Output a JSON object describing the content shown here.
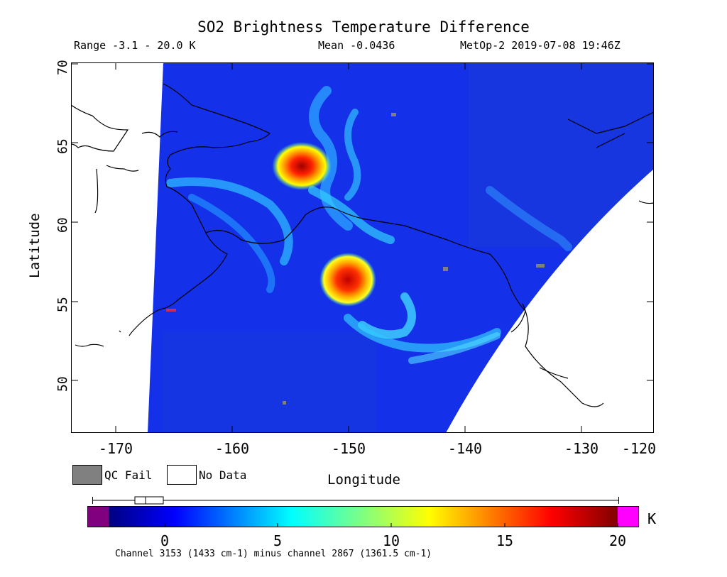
{
  "title": "SO2 Brightness Temperature Difference",
  "header": {
    "range": "Range -3.1 - 20.0 K",
    "mean": "Mean -0.0436",
    "satellite_time": "MetOp-2 2019-07-08 19:46Z"
  },
  "axes": {
    "x_label": "Longitude",
    "y_label": "Latitude",
    "x_ticks": [
      "-170",
      "-160",
      "-150",
      "-140",
      "-130",
      "-120"
    ],
    "y_ticks": [
      "50",
      "55",
      "60",
      "65",
      "70"
    ],
    "lon_range": [
      -175,
      -118
    ],
    "lat_range": [
      47,
      70
    ]
  },
  "legend": {
    "qc_fail": "QC Fail",
    "no_data": "No Data",
    "qc_color": "#808080"
  },
  "colorbar": {
    "ticks": [
      "0",
      "5",
      "10",
      "15",
      "20"
    ],
    "unit": "K",
    "range": [
      -3.1,
      20.0
    ],
    "under_color": "#800080",
    "over_color": "#ff00ff"
  },
  "channel_note": "Channel 3153 (1433 cm-1) minus channel 2867 (1361.5 cm-1)",
  "map": {
    "background_color": "#1430e8",
    "hotspots": [
      {
        "name": "plume-north",
        "lon": -152.5,
        "lat": 63.7,
        "peak_K": 20
      },
      {
        "name": "plume-south",
        "lon": -147.5,
        "lat": 56.2,
        "peak_K": 18
      }
    ]
  }
}
